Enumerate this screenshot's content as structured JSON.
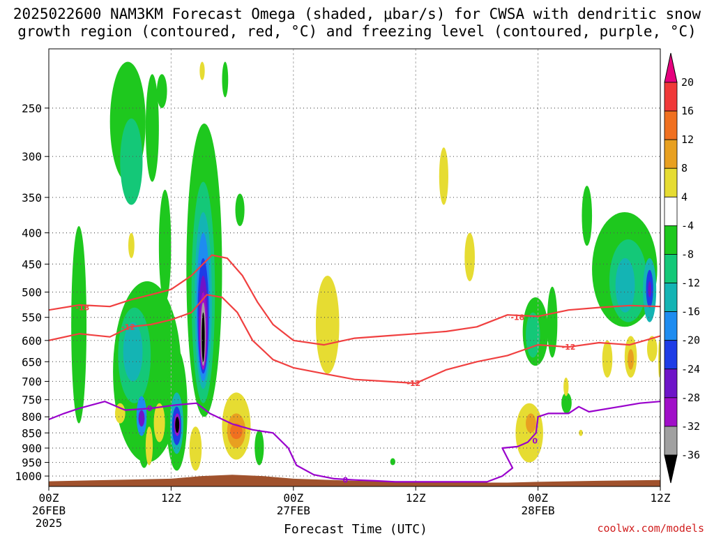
{
  "title": {
    "line1": "2025022600 NAM3KM Forecast Omega (shaded, μbar/s) for CWSA with dendritic snow",
    "line2": "growth region (contoured, red, °C) and freezing level (contoured, purple, °C)"
  },
  "credit": "coolwx.com/models",
  "colors": {
    "background": "#ffffff",
    "terrain": "#a0522d",
    "dgz_contour": "#f04040",
    "freezing_contour": "#9900cc",
    "grid": "#555555"
  },
  "chart_data": {
    "type": "heatmap",
    "title": "2025022600 NAM3KM Forecast Omega (shaded, μbar/s) for CWSA with dendritic snow growth region (contoured, red, °C) and freezing level (contoured, purple, °C)",
    "xlabel": "Forecast Time (UTC)",
    "ylabel": "",
    "x_ticks": [
      {
        "hour": 0,
        "lines": [
          "00Z",
          "26FEB",
          "2025"
        ]
      },
      {
        "hour": 12,
        "lines": [
          "12Z"
        ]
      },
      {
        "hour": 24,
        "lines": [
          "00Z",
          "27FEB"
        ]
      },
      {
        "hour": 36,
        "lines": [
          "12Z"
        ]
      },
      {
        "hour": 48,
        "lines": [
          "00Z",
          "28FEB"
        ]
      },
      {
        "hour": 60,
        "lines": [
          "12Z"
        ]
      }
    ],
    "xlim": [
      0,
      60
    ],
    "y_ticks": [
      250,
      300,
      350,
      400,
      450,
      500,
      550,
      600,
      650,
      700,
      750,
      800,
      850,
      900,
      950,
      1000
    ],
    "ylim": [
      1040,
      200
    ],
    "y_scale": "log-pressure",
    "grid": true,
    "colorbar": {
      "unit": "μbar/s",
      "ticks": [
        20,
        16,
        12,
        8,
        4,
        -4,
        -8,
        -12,
        -16,
        -20,
        -24,
        -28,
        -32,
        -36
      ],
      "bands": [
        {
          "from": 16,
          "to": 20,
          "color": "#f03838"
        },
        {
          "from": 12,
          "to": 16,
          "color": "#f07020"
        },
        {
          "from": 8,
          "to": 12,
          "color": "#e8a020"
        },
        {
          "from": 4,
          "to": 8,
          "color": "#e6dc32"
        },
        {
          "from": -4,
          "to": 4,
          "color": "#ffffff"
        },
        {
          "from": -8,
          "to": -4,
          "color": "#1ec81e"
        },
        {
          "from": -12,
          "to": -8,
          "color": "#14c878"
        },
        {
          "from": -16,
          "to": -12,
          "color": "#14b4b4"
        },
        {
          "from": -20,
          "to": -16,
          "color": "#1e8cf0"
        },
        {
          "from": -24,
          "to": -20,
          "color": "#1e3ce6"
        },
        {
          "from": -28,
          "to": -24,
          "color": "#6e14c8"
        },
        {
          "from": -32,
          "to": -28,
          "color": "#a00fc8"
        },
        {
          "from": -36,
          "to": -32,
          "color": "#a0a0a0"
        },
        {
          "from": -40,
          "to": -36,
          "color": "#000000"
        }
      ],
      "top_color": "#e6007e",
      "bottom_color": "#000000"
    },
    "cells": [
      {
        "t0": 6,
        "t1": 9.5,
        "p0": 210,
        "p1": 330,
        "v": -6
      },
      {
        "t0": 7,
        "t1": 9.2,
        "p0": 260,
        "p1": 360,
        "v": -10
      },
      {
        "t0": 9.5,
        "t1": 10.8,
        "p0": 220,
        "p1": 330,
        "v": -6
      },
      {
        "t0": 10.8,
        "t1": 12,
        "p0": 340,
        "p1": 520,
        "v": -6
      },
      {
        "t0": 2.2,
        "t1": 3.7,
        "p0": 390,
        "p1": 820,
        "v": -6
      },
      {
        "t0": 6.3,
        "t1": 13,
        "p0": 480,
        "p1": 950,
        "v": -6
      },
      {
        "t0": 6.8,
        "t1": 10,
        "p0": 530,
        "p1": 760,
        "v": -10
      },
      {
        "t0": 7.3,
        "t1": 9.2,
        "p0": 560,
        "p1": 700,
        "v": -14
      },
      {
        "t0": 8.7,
        "t1": 10,
        "p0": 760,
        "p1": 970,
        "v": -8
      },
      {
        "t0": 8.6,
        "t1": 9.6,
        "p0": 740,
        "p1": 860,
        "v": -18
      },
      {
        "t0": 8.8,
        "t1": 9.4,
        "p0": 780,
        "p1": 830,
        "v": -26
      },
      {
        "t0": 11.5,
        "t1": 13.6,
        "p0": 620,
        "p1": 980,
        "v": -8
      },
      {
        "t0": 11.9,
        "t1": 13.2,
        "p0": 730,
        "p1": 920,
        "v": -14
      },
      {
        "t0": 12.1,
        "t1": 13.0,
        "p0": 770,
        "p1": 890,
        "v": -22
      },
      {
        "t0": 12.3,
        "t1": 12.9,
        "p0": 790,
        "p1": 860,
        "v": -30
      },
      {
        "t0": 12.4,
        "t1": 12.8,
        "p0": 800,
        "p1": 850,
        "v": -38
      },
      {
        "t0": 13.5,
        "t1": 17,
        "p0": 265,
        "p1": 800,
        "v": -6
      },
      {
        "t0": 14,
        "t1": 16.3,
        "p0": 330,
        "p1": 760,
        "v": -10
      },
      {
        "t0": 14.3,
        "t1": 16,
        "p0": 370,
        "p1": 720,
        "v": -14
      },
      {
        "t0": 14.5,
        "t1": 15.8,
        "p0": 400,
        "p1": 700,
        "v": -18
      },
      {
        "t0": 14.6,
        "t1": 15.7,
        "p0": 440,
        "p1": 680,
        "v": -22
      },
      {
        "t0": 14.7,
        "t1": 15.6,
        "p0": 470,
        "p1": 670,
        "v": -26
      },
      {
        "t0": 14.8,
        "t1": 15.5,
        "p0": 500,
        "p1": 670,
        "v": -30
      },
      {
        "t0": 14.9,
        "t1": 15.4,
        "p0": 520,
        "p1": 660,
        "v": -34
      },
      {
        "t0": 15.0,
        "t1": 15.3,
        "p0": 540,
        "p1": 650,
        "v": -38
      },
      {
        "t0": 17,
        "t1": 17.6,
        "p0": 210,
        "p1": 240,
        "v": -6
      },
      {
        "t0": 18.3,
        "t1": 19.2,
        "p0": 345,
        "p1": 390,
        "v": -6
      },
      {
        "t0": 20.2,
        "t1": 21.1,
        "p0": 840,
        "p1": 960,
        "v": -8
      },
      {
        "t0": 33.5,
        "t1": 34,
        "p0": 935,
        "p1": 960,
        "v": -6
      },
      {
        "t0": 46.5,
        "t1": 49,
        "p0": 510,
        "p1": 660,
        "v": -6
      },
      {
        "t0": 46.8,
        "t1": 48.2,
        "p0": 540,
        "p1": 640,
        "v": -12
      },
      {
        "t0": 48.9,
        "t1": 49.9,
        "p0": 490,
        "p1": 640,
        "v": -6
      },
      {
        "t0": 50.3,
        "t1": 51.3,
        "p0": 730,
        "p1": 790,
        "v": -6
      },
      {
        "t0": 52.3,
        "t1": 53.3,
        "p0": 335,
        "p1": 420,
        "v": -6
      },
      {
        "t0": 53.3,
        "t1": 59.7,
        "p0": 370,
        "p1": 570,
        "v": -6
      },
      {
        "t0": 55,
        "t1": 58.7,
        "p0": 410,
        "p1": 560,
        "v": -10
      },
      {
        "t0": 55.6,
        "t1": 57.5,
        "p0": 440,
        "p1": 540,
        "v": -14
      },
      {
        "t0": 58.3,
        "t1": 59.6,
        "p0": 440,
        "p1": 560,
        "v": -14
      },
      {
        "t0": 58.6,
        "t1": 59.3,
        "p0": 460,
        "p1": 530,
        "v": -22
      },
      {
        "t0": 58.8,
        "t1": 59.1,
        "p0": 480,
        "p1": 510,
        "v": -28
      },
      {
        "t0": 10.6,
        "t1": 11.6,
        "p0": 220,
        "p1": 250,
        "v": -6
      },
      {
        "t0": 7.8,
        "t1": 8.4,
        "p0": 400,
        "p1": 440,
        "v": 5
      },
      {
        "t0": 14.8,
        "t1": 15.3,
        "p0": 210,
        "p1": 225,
        "v": 5
      },
      {
        "t0": 6.5,
        "t1": 7.5,
        "p0": 760,
        "p1": 820,
        "v": 5
      },
      {
        "t0": 9.5,
        "t1": 10.2,
        "p0": 830,
        "p1": 960,
        "v": 5
      },
      {
        "t0": 10.3,
        "t1": 11.4,
        "p0": 760,
        "p1": 880,
        "v": 5
      },
      {
        "t0": 13.8,
        "t1": 15,
        "p0": 830,
        "p1": 980,
        "v": 5
      },
      {
        "t0": 17,
        "t1": 19.8,
        "p0": 730,
        "p1": 940,
        "v": 5
      },
      {
        "t0": 17.5,
        "t1": 19.3,
        "p0": 790,
        "p1": 900,
        "v": 9
      },
      {
        "t0": 17.8,
        "t1": 19,
        "p0": 820,
        "p1": 870,
        "v": 13
      },
      {
        "t0": 26.2,
        "t1": 28.5,
        "p0": 470,
        "p1": 680,
        "v": 5
      },
      {
        "t0": 38.3,
        "t1": 39.2,
        "p0": 290,
        "p1": 360,
        "v": 5
      },
      {
        "t0": 40.8,
        "t1": 41.8,
        "p0": 400,
        "p1": 480,
        "v": 5
      },
      {
        "t0": 45.8,
        "t1": 48.5,
        "p0": 760,
        "p1": 950,
        "v": 5
      },
      {
        "t0": 46.8,
        "t1": 47.8,
        "p0": 790,
        "p1": 850,
        "v": 9
      },
      {
        "t0": 50.5,
        "t1": 51,
        "p0": 690,
        "p1": 740,
        "v": 5
      },
      {
        "t0": 52,
        "t1": 52.4,
        "p0": 840,
        "p1": 860,
        "v": 5
      },
      {
        "t0": 54.3,
        "t1": 55.3,
        "p0": 600,
        "p1": 690,
        "v": 5
      },
      {
        "t0": 56.5,
        "t1": 57.7,
        "p0": 590,
        "p1": 690,
        "v": 5
      },
      {
        "t0": 56.8,
        "t1": 57.4,
        "p0": 620,
        "p1": 670,
        "v": 9
      },
      {
        "t0": 58.7,
        "t1": 59.7,
        "p0": 590,
        "p1": 650,
        "v": 5
      },
      {
        "t0": 59.8,
        "t1": 60,
        "p0": 600,
        "p1": 690,
        "v": 5
      }
    ],
    "terrain_surface_hpa": [
      [
        0,
        1020
      ],
      [
        6,
        1015
      ],
      [
        12,
        1010
      ],
      [
        15,
        1000
      ],
      [
        18,
        995
      ],
      [
        21,
        1000
      ],
      [
        24,
        1010
      ],
      [
        30,
        1018
      ],
      [
        36,
        1022
      ],
      [
        42,
        1025
      ],
      [
        45,
        1025
      ],
      [
        48,
        1022
      ],
      [
        54,
        1018
      ],
      [
        60,
        1015
      ]
    ],
    "contours": [
      {
        "name": "-18",
        "kind": "dgz",
        "label": "-18",
        "label_positions": [
          [
            3.3,
            530
          ],
          [
            46,
            550
          ]
        ],
        "points": [
          [
            0,
            535
          ],
          [
            3,
            525
          ],
          [
            6,
            528
          ],
          [
            8,
            515
          ],
          [
            10,
            505
          ],
          [
            12,
            495
          ],
          [
            14,
            470
          ],
          [
            16,
            435
          ],
          [
            17.5,
            440
          ],
          [
            19,
            470
          ],
          [
            20.5,
            520
          ],
          [
            22,
            565
          ],
          [
            24,
            600
          ],
          [
            27,
            610
          ],
          [
            30,
            595
          ],
          [
            33,
            590
          ],
          [
            36,
            585
          ],
          [
            39,
            580
          ],
          [
            42,
            570
          ],
          [
            45,
            545
          ],
          [
            48,
            548
          ],
          [
            51,
            535
          ],
          [
            54,
            530
          ],
          [
            57,
            526
          ],
          [
            60,
            528
          ]
        ]
      },
      {
        "name": "-12",
        "kind": "dgz",
        "label": "-12",
        "label_positions": [
          [
            7.8,
            570
          ],
          [
            35.8,
            705
          ],
          [
            51,
            615
          ]
        ],
        "points": [
          [
            0,
            600
          ],
          [
            3,
            585
          ],
          [
            6,
            592
          ],
          [
            8,
            570
          ],
          [
            10,
            565
          ],
          [
            12,
            555
          ],
          [
            14,
            540
          ],
          [
            15.5,
            505
          ],
          [
            17,
            510
          ],
          [
            18.5,
            540
          ],
          [
            20,
            600
          ],
          [
            22,
            645
          ],
          [
            24,
            665
          ],
          [
            27,
            680
          ],
          [
            30,
            695
          ],
          [
            33,
            700
          ],
          [
            36,
            705
          ],
          [
            39,
            670
          ],
          [
            42,
            650
          ],
          [
            45,
            635
          ],
          [
            48,
            610
          ],
          [
            51,
            615
          ],
          [
            54,
            605
          ],
          [
            57,
            610
          ],
          [
            60,
            590
          ]
        ]
      },
      {
        "name": "0",
        "kind": "freezing",
        "label": "0",
        "label_positions": [
          [
            9.9,
            775
          ],
          [
            29.1,
            1015
          ],
          [
            47.7,
            875
          ]
        ],
        "points": [
          [
            0,
            808
          ],
          [
            1.5,
            790
          ],
          [
            3,
            775
          ],
          [
            5.5,
            755
          ],
          [
            7.5,
            780
          ],
          [
            10,
            775
          ],
          [
            12.5,
            765
          ],
          [
            14.5,
            760
          ],
          [
            15.8,
            790
          ],
          [
            18,
            822
          ],
          [
            20,
            840
          ],
          [
            22,
            850
          ],
          [
            23.5,
            900
          ],
          [
            24.3,
            960
          ],
          [
            26,
            995
          ],
          [
            28,
            1010
          ],
          [
            30,
            1015
          ],
          [
            32,
            1018
          ],
          [
            34,
            1022
          ],
          [
            43,
            1022
          ],
          [
            44.5,
            1000
          ],
          [
            45.5,
            970
          ],
          [
            45,
            935
          ],
          [
            44.5,
            900
          ],
          [
            46,
            895
          ],
          [
            47,
            880
          ],
          [
            47.8,
            850
          ],
          [
            48,
            800
          ],
          [
            49,
            790
          ],
          [
            51,
            790
          ],
          [
            52,
            770
          ],
          [
            53,
            785
          ],
          [
            56,
            770
          ],
          [
            58,
            760
          ],
          [
            60,
            755
          ]
        ]
      }
    ]
  }
}
